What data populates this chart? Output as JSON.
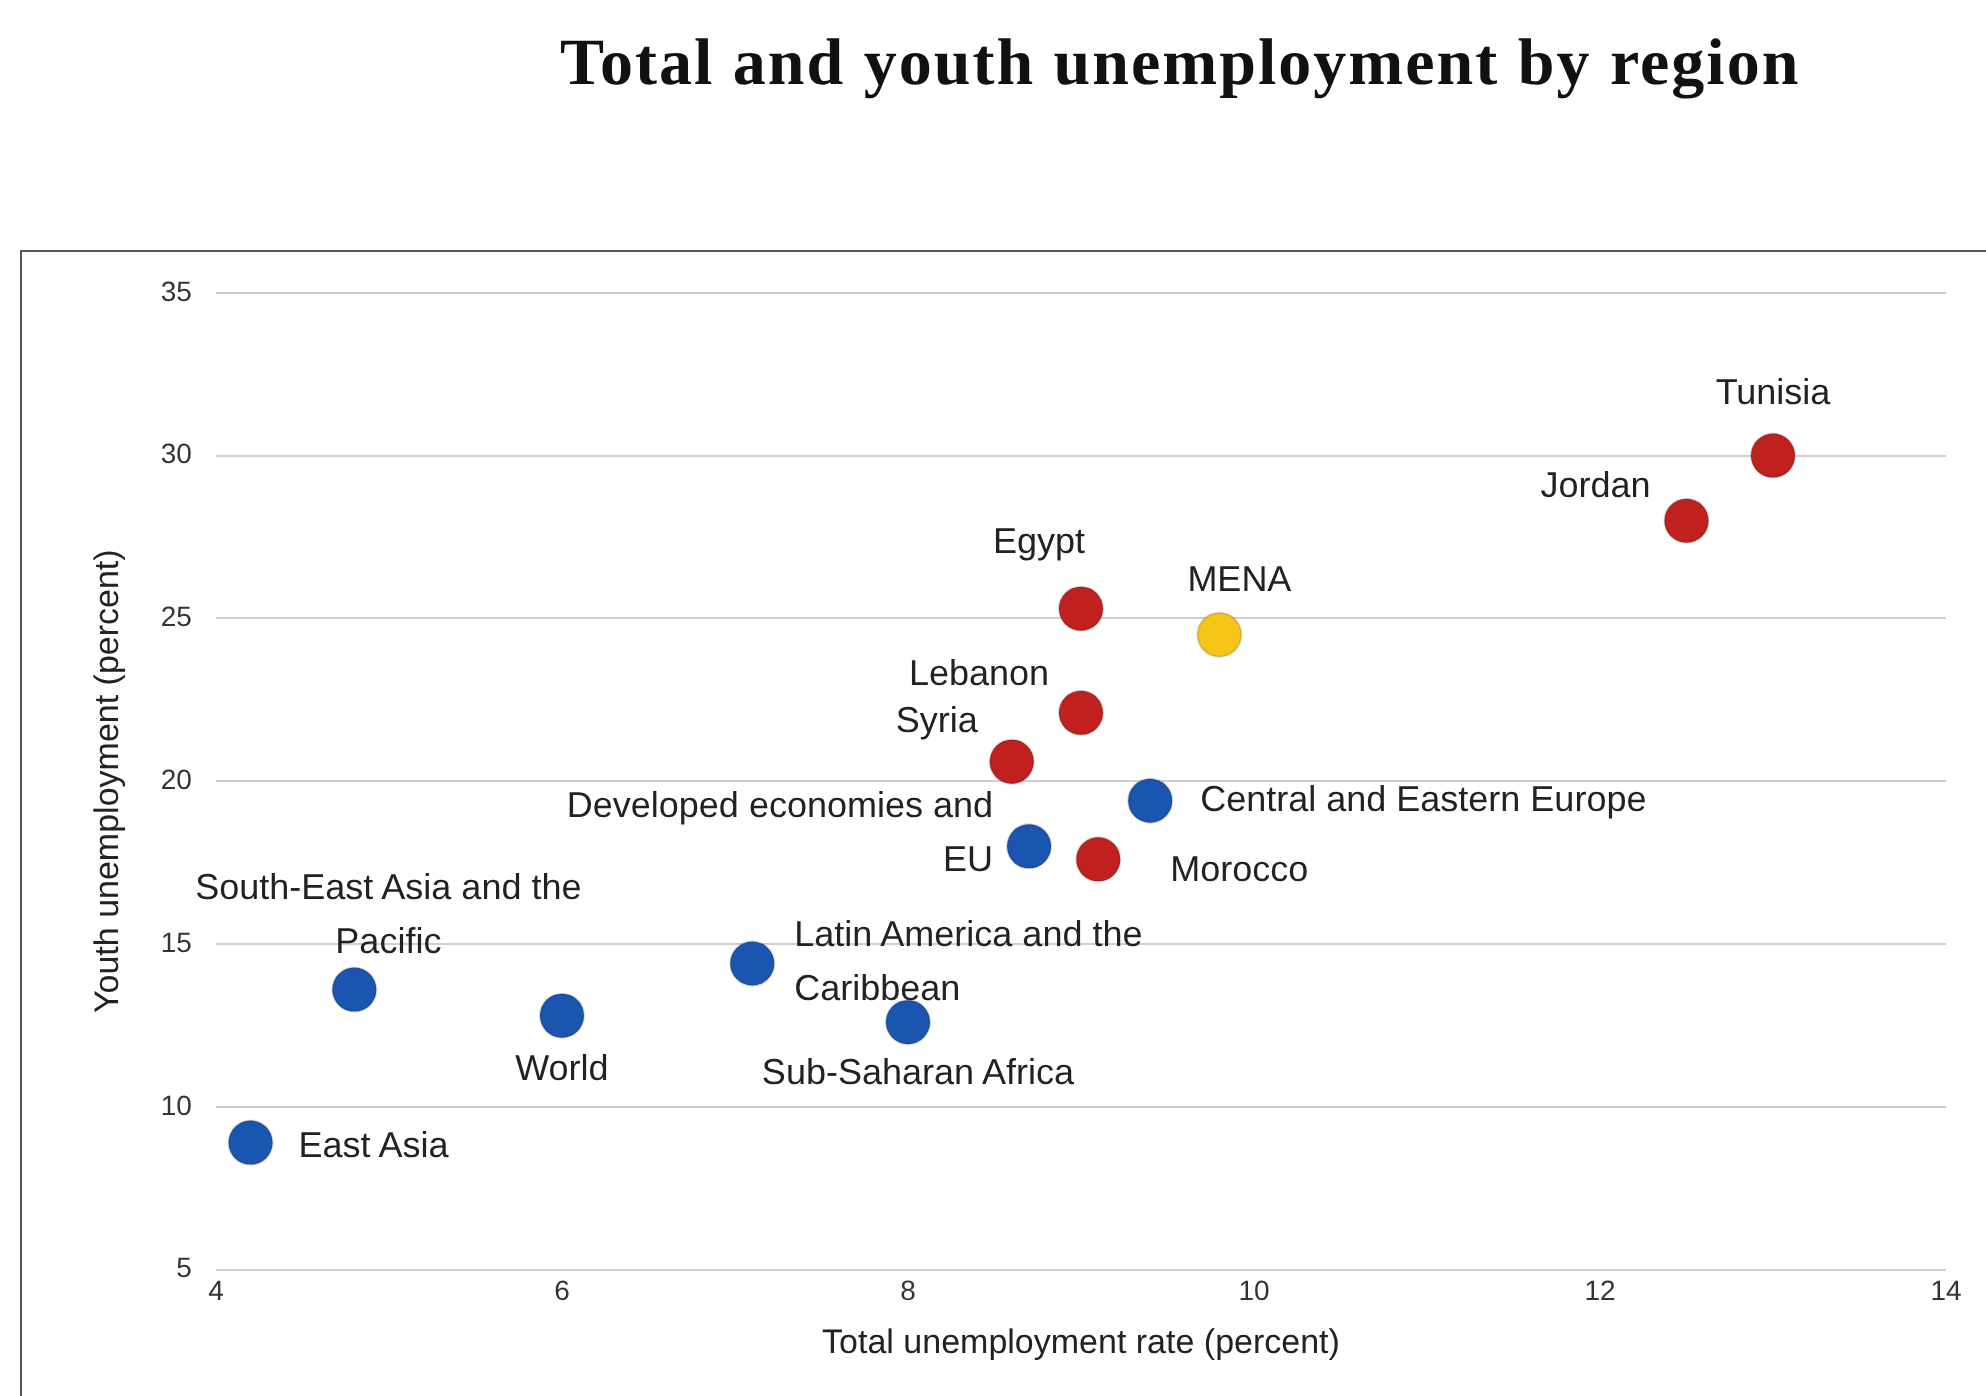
{
  "chart_data": {
    "type": "scatter",
    "title": "Total and youth unemployment by region",
    "xlabel": "Total unemployment rate (percent)",
    "ylabel": "Youth unemployment (percent)",
    "x": [
      13.0,
      12.5,
      9.0,
      9.8,
      9.0,
      8.6,
      9.4,
      8.7,
      9.1,
      4.8,
      6.0,
      7.1,
      8.0,
      4.2
    ],
    "series": [
      {
        "values": [
          30.0,
          28.0,
          25.3,
          24.5,
          22.1,
          20.6,
          19.4,
          18.0,
          17.6,
          13.6,
          12.8,
          14.4,
          12.6,
          8.9
        ],
        "colors": [
          "#c0211f",
          "#c0211f",
          "#c0211f",
          "#f5c518",
          "#c0211f",
          "#c0211f",
          "#1a56b0",
          "#1a56b0",
          "#c0211f",
          "#1a56b0",
          "#1a56b0",
          "#1a56b0",
          "#1a56b0",
          "#1a56b0"
        ]
      }
    ],
    "annotations": [
      {
        "text": "Tunisia",
        "x": 13.0,
        "y": 30.0
      },
      {
        "text": "Jordan",
        "x": 12.5,
        "y": 28.0
      },
      {
        "text": "Egypt",
        "x": 9.0,
        "y": 25.3
      },
      {
        "text": "MENA",
        "x": 9.8,
        "y": 24.5
      },
      {
        "text": "Lebanon",
        "x": 9.0,
        "y": 22.1
      },
      {
        "text": "Syria",
        "x": 8.6,
        "y": 20.6
      },
      {
        "text": "Central and Eastern Europe",
        "x": 9.4,
        "y": 19.4
      },
      {
        "text": "Developed economies and EU",
        "x": 8.7,
        "y": 18.0
      },
      {
        "text": "Morocco",
        "x": 9.1,
        "y": 17.6
      },
      {
        "text": "South-East Asia and the Pacific",
        "x": 4.8,
        "y": 13.6
      },
      {
        "text": "World",
        "x": 6.0,
        "y": 12.8
      },
      {
        "text": "Latin America and the Caribbean",
        "x": 7.1,
        "y": 14.4
      },
      {
        "text": "Sub-Saharan Africa",
        "x": 8.0,
        "y": 12.6
      },
      {
        "text": "East Asia",
        "x": 4.2,
        "y": 8.9
      }
    ],
    "xlim": [
      4,
      14
    ],
    "xticks": [
      4,
      6,
      8,
      10,
      12,
      14
    ],
    "ylim": [
      5,
      35
    ],
    "yticks": [
      5,
      10,
      15,
      20,
      25,
      30,
      35
    ],
    "grid": "y",
    "legend": false,
    "marker": "circle"
  }
}
